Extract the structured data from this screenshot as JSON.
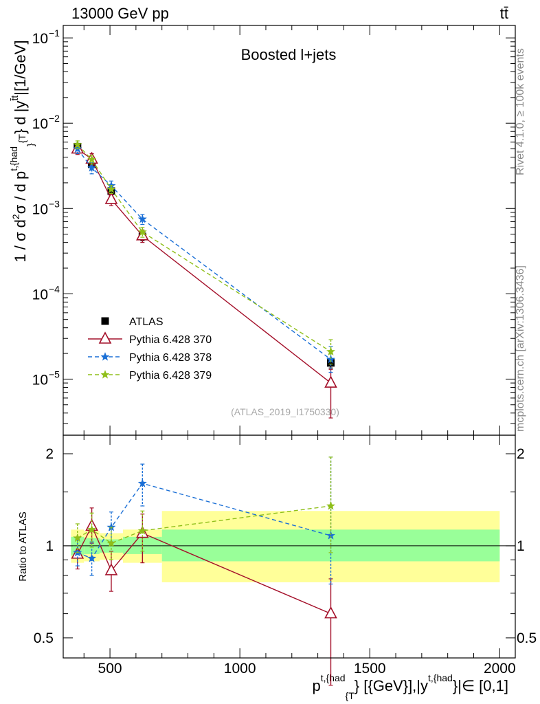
{
  "header": {
    "left": "13000 GeV pp",
    "right": "tt̄"
  },
  "side_labels": {
    "rivet": "Rivet 4.1.0, ≥ 100k events",
    "mcplots": "mcplots.cern.ch [arXiv:1306.3436]"
  },
  "watermark": "(ATLAS_2019_I1750330)",
  "chart_data": [
    {
      "type": "scatter",
      "panel": "main",
      "title": "Boosted l+jets",
      "ylabel": "1 / σ d²σ / d p^{t,{had}}_{T} d |y^{t̄t}| [1/GeV]",
      "xlim": [
        320,
        2060
      ],
      "ylim": [
        2.2e-06,
        0.14
      ],
      "yscale": "log",
      "ytick_labels": [
        {
          "base": "10",
          "exp": "−5",
          "value": 1e-05
        },
        {
          "base": "10",
          "exp": "−4",
          "value": 0.0001
        },
        {
          "base": "10",
          "exp": "−3",
          "value": 0.001
        },
        {
          "base": "10",
          "exp": "−2",
          "value": 0.01
        },
        {
          "base": "10",
          "exp": "−1",
          "value": 0.1
        }
      ],
      "series": [
        {
          "name": "ATLAS",
          "color": "#000000",
          "marker": "square",
          "x": [
            375,
            430,
            505,
            625,
            1350
          ],
          "x_lo": [
            350,
            400,
            460,
            550,
            700
          ],
          "x_hi": [
            400,
            460,
            550,
            700,
            2000
          ],
          "y": [
            0.0053,
            0.0033,
            0.0016,
            0.00047,
            1.55e-05
          ],
          "err_lo": [
            0.0048,
            0.003,
            0.00145,
            0.00042,
            1.35e-05
          ],
          "err_hi": [
            0.0058,
            0.0036,
            0.00175,
            0.00052,
            1.75e-05
          ]
        },
        {
          "name": "Pythia 6.428 370",
          "color": "#a4102a",
          "marker": "triangle-open",
          "dash": "solid",
          "x": [
            375,
            430,
            505,
            625,
            1350
          ],
          "y": [
            0.005,
            0.0038,
            0.00128,
            0.00048,
            9e-06
          ],
          "err_lo": [
            0.0043,
            0.0032,
            0.00108,
            0.0004,
            3.5e-06
          ],
          "err_hi": [
            0.0057,
            0.0044,
            0.00148,
            0.00056,
            1.3e-05
          ]
        },
        {
          "name": "Pythia 6.428 378",
          "color": "#1a6fd6",
          "marker": "star",
          "dash": "6,4",
          "x": [
            375,
            430,
            505,
            625,
            1350
          ],
          "y": [
            0.005,
            0.003,
            0.00185,
            0.00075,
            1.7e-05
          ],
          "err_lo": [
            0.0044,
            0.00255,
            0.0016,
            0.00065,
            1.2e-05
          ],
          "err_hi": [
            0.0056,
            0.00345,
            0.0021,
            0.00085,
            2.4e-05
          ]
        },
        {
          "name": "Pythia 6.428 379",
          "color": "#8fbf1a",
          "marker": "star",
          "dash": "6,4",
          "x": [
            375,
            430,
            505,
            625,
            1350
          ],
          "y": [
            0.0056,
            0.00375,
            0.00168,
            0.00053,
            2.1e-05
          ],
          "err_lo": [
            0.005,
            0.0033,
            0.0015,
            0.00046,
            1.5e-05
          ],
          "err_hi": [
            0.0062,
            0.0042,
            0.00186,
            0.0006,
            2.9e-05
          ]
        }
      ]
    },
    {
      "type": "scatter",
      "panel": "ratio",
      "ylabel": "Ratio to ATLAS",
      "xlabel_parts": {
        "p": "p",
        "sup1": "t,{had",
        "sub1": "{T",
        "mid": "} [{GeV}],|y",
        "sup2": "t,{had",
        "end": "}|∈ [0,1]"
      },
      "xlim": [
        320,
        2060
      ],
      "ylim": [
        0.43,
        2.3
      ],
      "yscale": "log",
      "xticks": [
        500,
        1000,
        1500,
        2000
      ],
      "xtick_labels": [
        "500",
        "1000",
        "1500",
        "2000"
      ],
      "yticks": [
        0.5,
        1,
        2
      ],
      "ytick_labels": [
        "0.5",
        "1",
        "2"
      ],
      "bands": [
        {
          "x_lo": 350,
          "x_hi": 400,
          "green": [
            0.93,
            1.07
          ],
          "yellow": [
            0.88,
            1.13
          ]
        },
        {
          "x_lo": 400,
          "x_hi": 460,
          "green": [
            0.94,
            1.06
          ],
          "yellow": [
            0.89,
            1.12
          ]
        },
        {
          "x_lo": 460,
          "x_hi": 550,
          "green": [
            0.95,
            1.05
          ],
          "yellow": [
            0.9,
            1.1
          ]
        },
        {
          "x_lo": 550,
          "x_hi": 700,
          "green": [
            0.94,
            1.07
          ],
          "yellow": [
            0.88,
            1.13
          ]
        },
        {
          "x_lo": 700,
          "x_hi": 2000,
          "green": [
            0.89,
            1.13
          ],
          "yellow": [
            0.76,
            1.3
          ]
        }
      ],
      "series": [
        {
          "name": "Pythia 6.428 370",
          "color": "#a4102a",
          "marker": "triangle-open",
          "dash": "solid",
          "x": [
            375,
            430,
            505,
            625,
            1350
          ],
          "y": [
            0.94,
            1.16,
            0.83,
            1.1,
            0.6
          ],
          "err_lo": [
            0.84,
            1.02,
            0.71,
            0.88,
            0.35
          ],
          "err_hi": [
            1.05,
            1.33,
            0.96,
            1.27,
            0.78
          ]
        },
        {
          "name": "Pythia 6.428 378",
          "color": "#1a6fd6",
          "marker": "star",
          "dash": "6,4",
          "x": [
            375,
            430,
            505,
            625,
            1350
          ],
          "y": [
            0.95,
            0.91,
            1.15,
            1.6,
            1.08
          ],
          "err_lo": [
            0.86,
            0.8,
            1.03,
            1.35,
            0.75
          ],
          "err_hi": [
            1.05,
            1.03,
            1.29,
            1.85,
            1.95
          ]
        },
        {
          "name": "Pythia 6.428 379",
          "color": "#8fbf1a",
          "marker": "star",
          "dash": "6,4",
          "x": [
            375,
            430,
            505,
            625,
            1350
          ],
          "y": [
            1.06,
            1.13,
            1.02,
            1.12,
            1.35
          ],
          "err_lo": [
            0.95,
            0.99,
            0.9,
            0.96,
            0.95
          ],
          "err_hi": [
            1.18,
            1.28,
            1.15,
            1.3,
            1.95
          ]
        }
      ]
    }
  ]
}
